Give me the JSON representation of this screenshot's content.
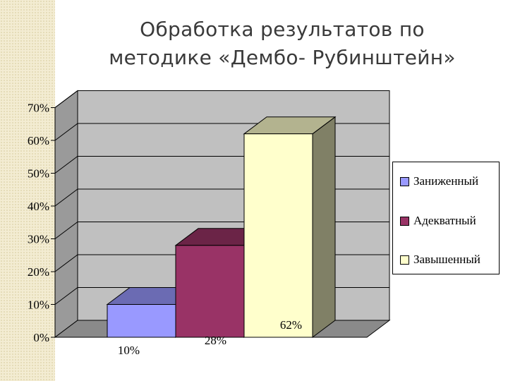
{
  "title": {
    "line1": "Обработка результатов по",
    "line2": "методике «Дембо- Рубинштейн»"
  },
  "chart_data": {
    "type": "bar",
    "categories": [
      "Заниженный",
      "Адекватный",
      "Завышенный"
    ],
    "values": [
      10,
      28,
      62
    ],
    "data_labels": [
      "10%",
      "28%",
      "62%"
    ],
    "colors": [
      "#9999ff",
      "#993366",
      "#ffffcc"
    ],
    "ylim": [
      0,
      70
    ],
    "y_ticks": [
      "0%",
      "10%",
      "20%",
      "30%",
      "40%",
      "50%",
      "60%",
      "70%"
    ],
    "grid": true,
    "style": "3d",
    "legend_position": "right",
    "legend": [
      "Заниженный",
      "Адекватный",
      "Завышенный"
    ]
  }
}
